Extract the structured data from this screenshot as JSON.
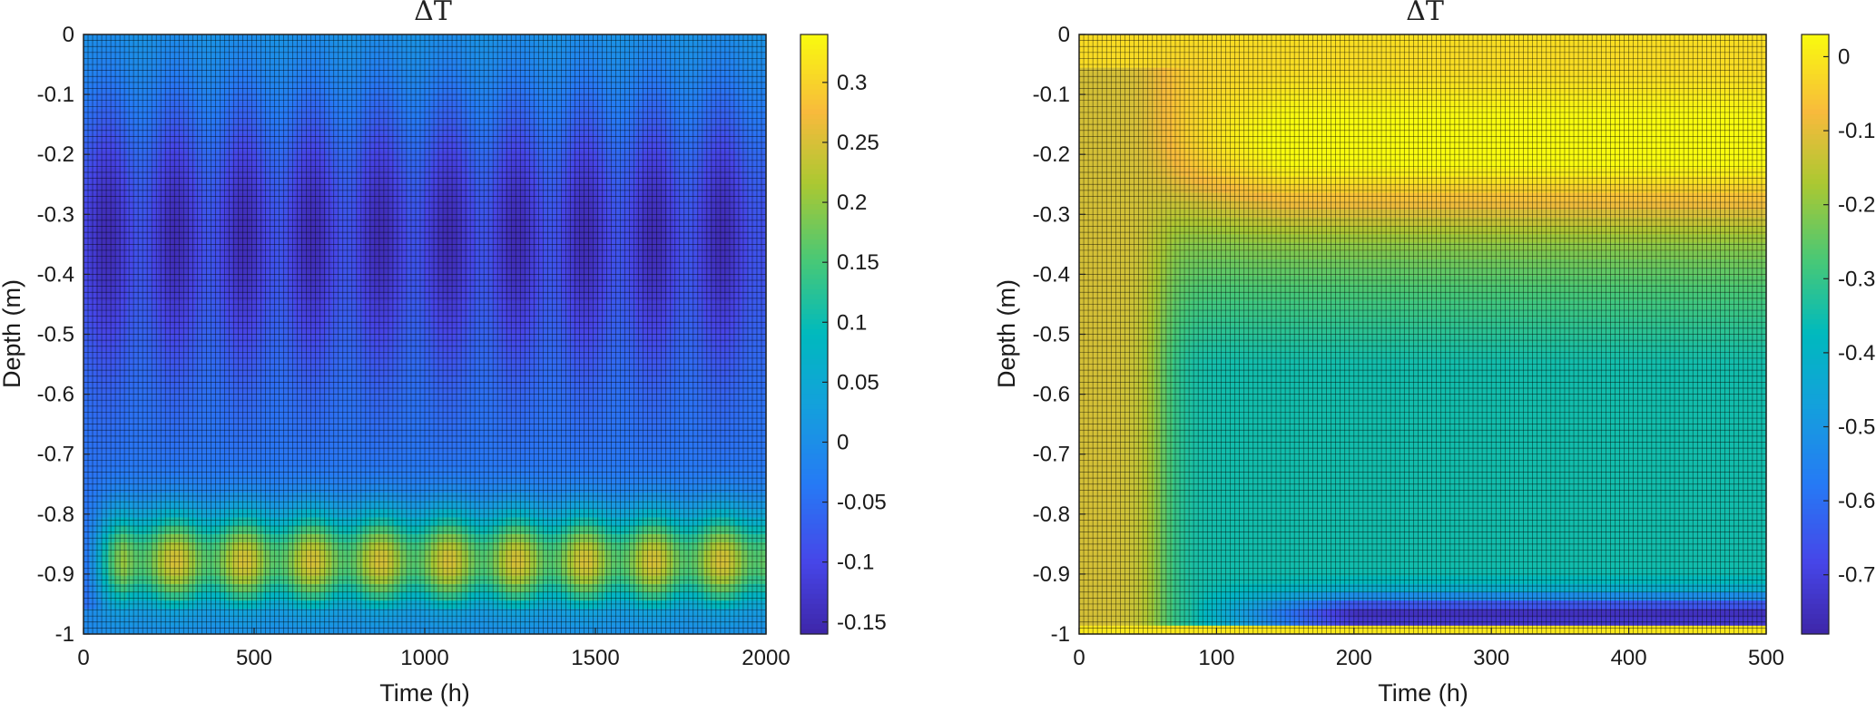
{
  "chart_data": [
    {
      "type": "heatmap",
      "title": "ΔT",
      "xlabel": "Time (h)",
      "ylabel": "Depth (m)",
      "xlim": [
        0,
        2000
      ],
      "ylim": [
        -1,
        0
      ],
      "xticks": [
        "0",
        "500",
        "1000",
        "1500",
        "2000"
      ],
      "yticks": [
        "0",
        "-0.1",
        "-0.2",
        "-0.3",
        "-0.4",
        "-0.5",
        "-0.6",
        "-0.7",
        "-0.8",
        "-0.9",
        "-1"
      ],
      "colorbar": {
        "min": -0.16,
        "max": 0.34,
        "ticks": [
          "0.3",
          "0.25",
          "0.2",
          "0.15",
          "0.1",
          "0.05",
          "0",
          "-0.05",
          "-0.1",
          "-0.15"
        ],
        "colormap": "parula"
      },
      "grid": true,
      "description_of_field": {
        "surface_value": 0.02,
        "min_band_depth": -0.32,
        "min_band_value": -0.14,
        "warm_band_depth": -0.88,
        "warm_band_value": 0.3,
        "oscillation_period_h": 200
      }
    },
    {
      "type": "heatmap",
      "title": "ΔT",
      "xlabel": "Time (h)",
      "ylabel": "Depth (m)",
      "xlim": [
        0,
        500
      ],
      "ylim": [
        -1,
        0
      ],
      "xticks": [
        "0",
        "100",
        "200",
        "300",
        "400",
        "500"
      ],
      "yticks": [
        "0",
        "-0.1",
        "-0.2",
        "-0.3",
        "-0.4",
        "-0.5",
        "-0.6",
        "-0.7",
        "-0.8",
        "-0.9",
        "-1"
      ],
      "colorbar": {
        "min": -0.78,
        "max": 0.03,
        "ticks": [
          "0",
          "-0.1",
          "-0.2",
          "-0.3",
          "-0.4",
          "-0.5",
          "-0.6",
          "-0.7"
        ],
        "colormap": "parula"
      },
      "grid": true,
      "description_of_field": {
        "surface_value": -0.02,
        "subsurface_band_depth": -0.2,
        "subsurface_band_value": -0.12,
        "interior_value": -0.35,
        "cold_band_depth": -0.97,
        "cold_band_value": -0.75,
        "transition_time_h": 60
      }
    }
  ]
}
